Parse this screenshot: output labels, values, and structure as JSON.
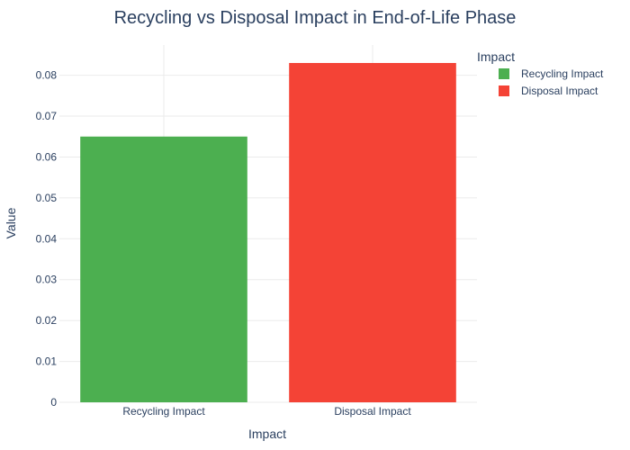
{
  "chart_data": {
    "type": "bar",
    "title": "Recycling vs Disposal Impact in End-of-Life Phase",
    "xlabel": "Impact",
    "ylabel": "Value",
    "categories": [
      "Recycling Impact",
      "Disposal Impact"
    ],
    "values": [
      0.065,
      0.083
    ],
    "colors": [
      "#4caf50",
      "#f44336"
    ],
    "ylim": [
      0,
      0.0874
    ],
    "yticks": [
      0,
      0.01,
      0.02,
      0.03,
      0.04,
      0.05,
      0.06,
      0.07,
      0.08
    ],
    "ytick_labels": [
      "0",
      "0.01",
      "0.02",
      "0.03",
      "0.04",
      "0.05",
      "0.06",
      "0.07",
      "0.08"
    ],
    "grid": true,
    "legend": {
      "title": "Impact",
      "placement": "top-right",
      "items": [
        "Recycling Impact",
        "Disposal Impact"
      ]
    }
  }
}
